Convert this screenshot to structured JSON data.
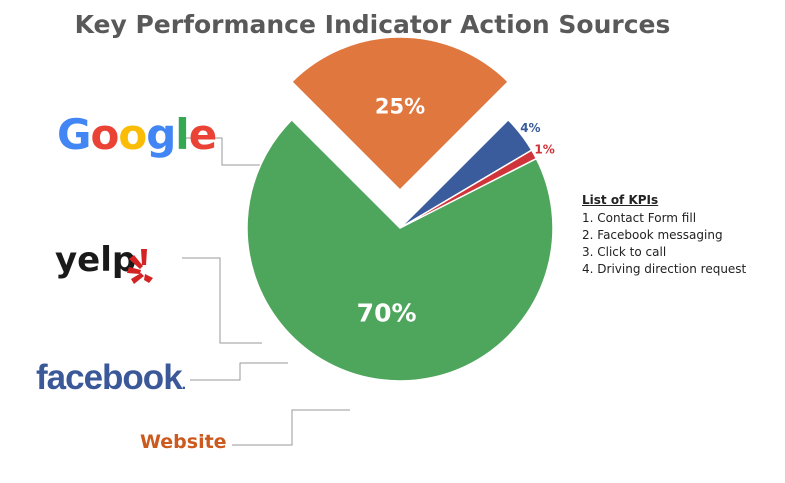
{
  "title": "Key Performance Indicator Action Sources",
  "chart_data": {
    "type": "pie",
    "title": "Key Performance Indicator Action Sources",
    "slices": [
      {
        "name": "Google",
        "value": 70,
        "label": "70%",
        "color": "#4ea55c"
      },
      {
        "name": "Website",
        "value": 25,
        "label": "25%",
        "color": "#e0773f",
        "exploded": true
      },
      {
        "name": "Facebook",
        "value": 4,
        "label": "4%",
        "color": "#3a5b9c"
      },
      {
        "name": "Yelp",
        "value": 1,
        "label": "1%",
        "color": "#d0343a"
      }
    ],
    "legend": "logos with leader lines"
  },
  "kpi_list": {
    "title": "List of KPIs",
    "items": [
      "1.  Contact Form fill",
      "2.  Facebook messaging",
      "3.  Click to call",
      "4.  Driving direction request"
    ]
  },
  "logos": {
    "google": "Google",
    "yelp": "yelp",
    "facebook": "facebook",
    "facebook_dot": ".",
    "website": "Website"
  },
  "colors": {
    "google_blue": "#4285f4",
    "google_red": "#ea4335",
    "google_yellow": "#fbbc05",
    "google_green": "#34a853",
    "yelp_red": "#d32323",
    "facebook_blue": "#3b5998",
    "website_orange": "#cc5a1e"
  }
}
